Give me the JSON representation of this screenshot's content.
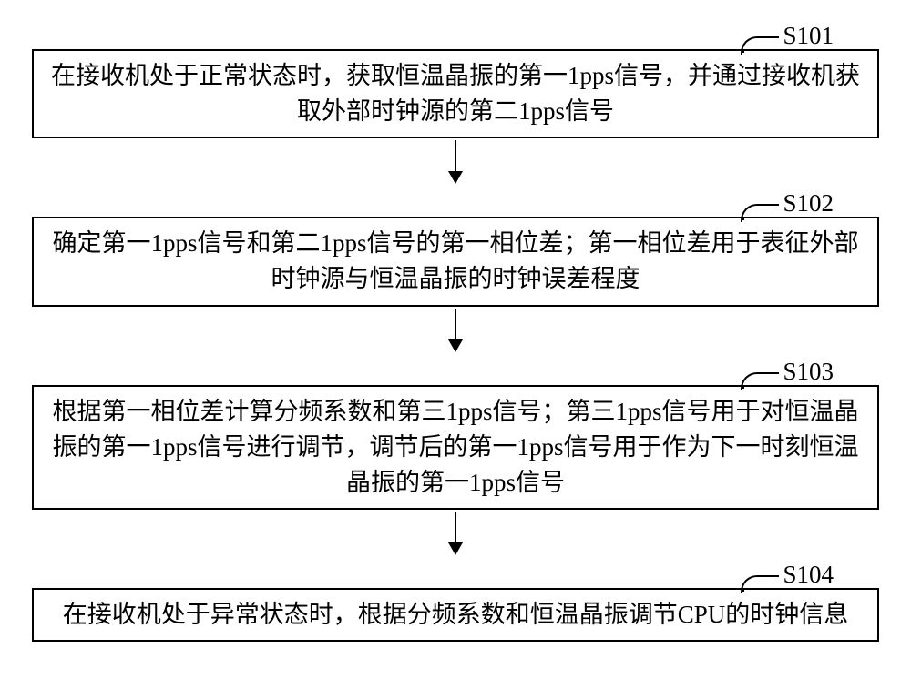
{
  "flowchart": {
    "type": "flowchart",
    "background_color": "#ffffff",
    "box_border_color": "#000000",
    "box_border_width": 2,
    "arrow_color": "#000000",
    "font_family": "SimSun",
    "font_size_pt": 20,
    "steps": [
      {
        "id": "S101",
        "text": "在接收机处于正常状态时，获取恒温晶振的第一1pps信号，并通过接收机获取外部时钟源的第二1pps信号"
      },
      {
        "id": "S102",
        "text": "确定第一1pps信号和第二1pps信号的第一相位差；第一相位差用于表征外部时钟源与恒温晶振的时钟误差程度"
      },
      {
        "id": "S103",
        "text": "根据第一相位差计算分频系数和第三1pps信号；第三1pps信号用于对恒温晶振的第一1pps信号进行调节，调节后的第一1pps信号用于作为下一时刻恒温晶振的第一1pps信号"
      },
      {
        "id": "S104",
        "text": "在接收机处于异常状态时，根据分频系数和恒温晶振调节CPU的时钟信息"
      }
    ]
  }
}
